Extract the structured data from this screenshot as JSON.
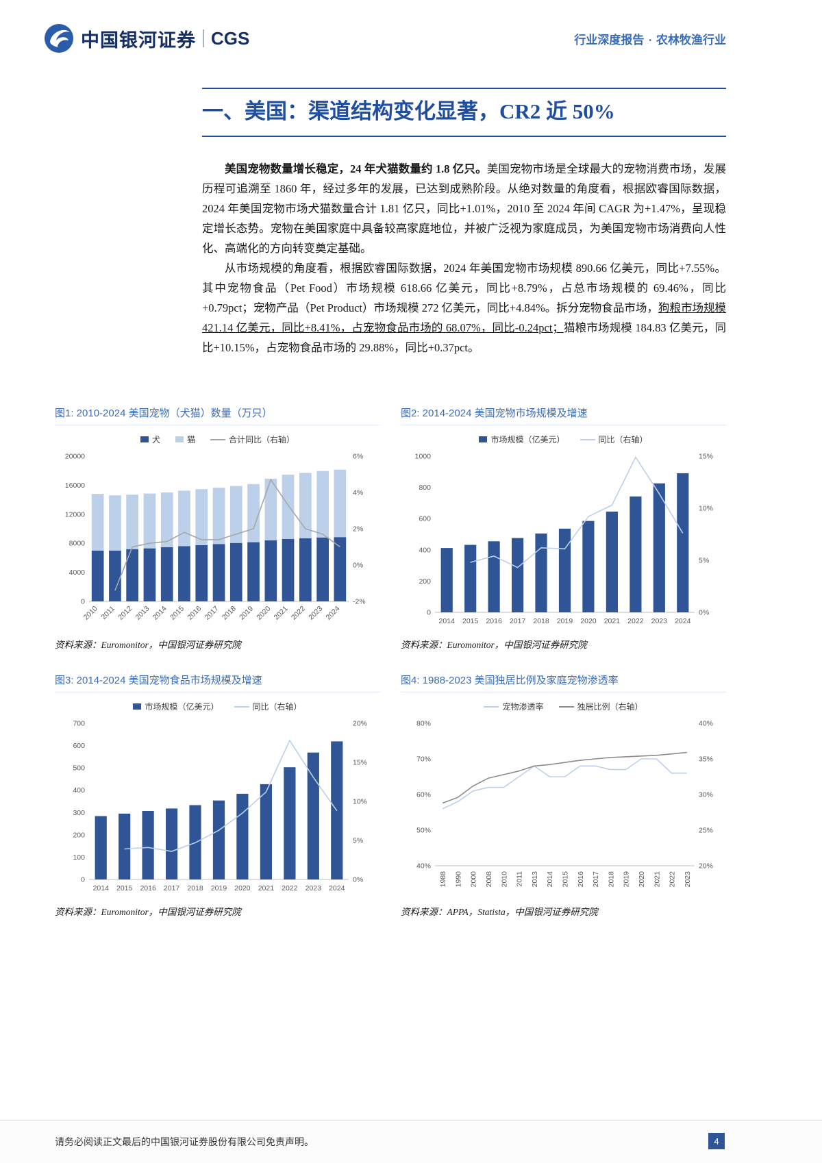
{
  "header": {
    "brand_cn": "中国银河证券",
    "brand_en": "CGS",
    "report_type": "行业深度报告",
    "separator": "·",
    "industry": "农林牧渔行业"
  },
  "title": "一、美国：渠道结构变化显著，CR2 近 50%",
  "body": {
    "p1_bold": "美国宠物数量增长稳定，24 年犬猫数量约 1.8 亿只。",
    "p1_rest": "美国宠物市场是全球最大的宠物消费市场，发展历程可追溯至 1860 年，经过多年的发展，已达到成熟阶段。从绝对数量的角度看，根据欧睿国际数据，2024 年美国宠物市场犬猫数量合计 1.81 亿只，同比+1.01%，2010 至 2024 年间 CAGR 为+1.47%，呈现稳定增长态势。宠物在美国家庭中具备较高家庭地位，并被广泛视为家庭成员，为美国宠物市场消费向人性化、高端化的方向转变奠定基础。",
    "p2_pre": "从市场规模的角度看，根据欧睿国际数据，2024 年美国宠物市场规模 890.66 亿美元，同比+7.55%。其中宠物食品（Pet Food）市场规模 618.66 亿美元，同比+8.79%，占总市场规模的 69.46%，同比+0.79pct；宠物产品（Pet Product）市场规模 272 亿美元，同比+4.84%。拆分宠物食品市场，",
    "p2_underline": "狗粮市场规模 421.14 亿美元，同比+8.41%，占宠物食品市场的 68.07%，同比-0.24pct；",
    "p2_post": "猫粮市场规模 184.83 亿美元，同比+10.15%，占宠物食品市场的 29.88%，同比+0.37pct。"
  },
  "figures": [
    {
      "caption": "图1: 2010-2024 美国宠物（犬猫）数量（万只）",
      "source": "资料来源：Euromonitor，中国银河证券研究院",
      "chart_data": {
        "type": "bar",
        "stacked": true,
        "bar_ratio": 0.7,
        "x_label_rotate": 45,
        "categories": [
          "2010",
          "2011",
          "2012",
          "2013",
          "2014",
          "2015",
          "2016",
          "2017",
          "2018",
          "2019",
          "2020",
          "2021",
          "2022",
          "2023",
          "2024"
        ],
        "left_axis": {
          "min": 0,
          "max": 20000,
          "ticks": [
            0,
            4000,
            8000,
            12000,
            16000,
            20000
          ],
          "suffix": ""
        },
        "right_axis": {
          "min": -2,
          "max": 6,
          "ticks": [
            -2,
            0,
            2,
            4,
            6
          ],
          "suffix": "%"
        },
        "bars": [
          {
            "name": "犬",
            "color": "#2F5597",
            "values": [
              7000,
              7000,
              7200,
              7300,
              7450,
              7600,
              7750,
              7900,
              8050,
              8150,
              8400,
              8600,
              8700,
              8800,
              8850
            ]
          },
          {
            "name": "猫",
            "color": "#BDD0E9",
            "values": [
              7800,
              7600,
              7500,
              7550,
              7550,
              7650,
              7700,
              7750,
              7850,
              8000,
              8500,
              8850,
              9000,
              9150,
              9280
            ]
          }
        ],
        "lines": [
          {
            "name": "合计同比（右轴）",
            "color": "#A6A6A6",
            "axis": "right",
            "values": [
              null,
              -1.4,
              1.0,
              1.2,
              1.3,
              1.8,
              1.4,
              1.4,
              1.7,
              2.0,
              4.7,
              3.3,
              2.0,
              1.7,
              1.0
            ]
          }
        ]
      }
    },
    {
      "caption": "图2: 2014-2024 美国宠物市场规模及增速",
      "source": "资料来源：Euromonitor，中国银河证券研究院",
      "chart_data": {
        "type": "bar",
        "stacked": false,
        "bar_ratio": 0.5,
        "x_label_rotate": 0,
        "categories": [
          "2014",
          "2015",
          "2016",
          "2017",
          "2018",
          "2019",
          "2020",
          "2021",
          "2022",
          "2023",
          "2024"
        ],
        "left_axis": {
          "min": 0,
          "max": 1000,
          "ticks": [
            0,
            200,
            400,
            600,
            800,
            1000
          ],
          "suffix": ""
        },
        "right_axis": {
          "min": 0,
          "max": 15,
          "ticks": [
            0,
            5,
            10,
            15
          ],
          "suffix": "%"
        },
        "bars": [
          {
            "name": "市场规模（亿美元）",
            "color": "#2F5597",
            "values": [
              412,
              432,
              455,
              476,
              505,
              536,
              585,
              645,
              742,
              826,
              891
            ]
          }
        ],
        "lines": [
          {
            "name": "同比（右轴）",
            "color": "#BDD0E9",
            "axis": "right",
            "values": [
              null,
              4.8,
              5.4,
              4.3,
              6.2,
              6.1,
              9.2,
              10.3,
              14.9,
              11.4,
              7.6
            ]
          }
        ]
      }
    },
    {
      "caption": "图3: 2014-2024 美国宠物食品市场规模及增速",
      "source": "资料来源：Euromonitor，中国银河证券研究院",
      "chart_data": {
        "type": "bar",
        "stacked": false,
        "bar_ratio": 0.5,
        "x_label_rotate": 0,
        "categories": [
          "2014",
          "2015",
          "2016",
          "2017",
          "2018",
          "2019",
          "2020",
          "2021",
          "2022",
          "2023",
          "2024"
        ],
        "left_axis": {
          "min": 0,
          "max": 700,
          "ticks": [
            0,
            100,
            200,
            300,
            400,
            500,
            600,
            700
          ],
          "suffix": ""
        },
        "right_axis": {
          "min": 0,
          "max": 20,
          "ticks": [
            0,
            5,
            10,
            15,
            20
          ],
          "suffix": "%"
        },
        "bars": [
          {
            "name": "市场规模（亿美元）",
            "color": "#2F5597",
            "values": [
              284,
              295,
              307,
              318,
              333,
              354,
              384,
              427,
              503,
              569,
              619
            ]
          }
        ],
        "lines": [
          {
            "name": "同比（右轴）",
            "color": "#BDD0E9",
            "axis": "right",
            "values": [
              null,
              3.9,
              4.1,
              3.6,
              4.7,
              6.3,
              8.5,
              11.2,
              17.8,
              13.1,
              8.8
            ]
          }
        ]
      }
    },
    {
      "caption": "图4:  1988-2023 美国独居比例及家庭宠物渗透率",
      "source": "资料来源：APPA，Statista，中国银河证券研究院",
      "chart_data": {
        "type": "line",
        "x_label_rotate": 90,
        "categories": [
          "1988",
          "1990",
          "2000",
          "2008",
          "2010",
          "2011",
          "2013",
          "2014",
          "2015",
          "2016",
          "2017",
          "2018",
          "2019",
          "2020",
          "2021",
          "2022",
          "2023"
        ],
        "left_axis": {
          "min": 40,
          "max": 80,
          "ticks": [
            40,
            50,
            60,
            70,
            80
          ],
          "suffix": "%"
        },
        "right_axis": {
          "min": 20,
          "max": 40,
          "ticks": [
            20,
            25,
            30,
            35,
            40
          ],
          "suffix": "%"
        },
        "lines": [
          {
            "name": "宠物渗透率",
            "color": "#BDD0E9",
            "axis": "left",
            "values": [
              56,
              58,
              61,
              62,
              62,
              65,
              68,
              65,
              65,
              68,
              68,
              67,
              67,
              70,
              70,
              66,
              66
            ]
          },
          {
            "name": "独居比例（右轴）",
            "color": "#8C8C8C",
            "axis": "right",
            "values": [
              28.8,
              29.6,
              31.2,
              32.3,
              32.8,
              33.3,
              34.0,
              34.2,
              34.5,
              34.8,
              35.0,
              35.2,
              35.3,
              35.4,
              35.5,
              35.7,
              35.9
            ]
          }
        ]
      }
    }
  ],
  "footer": {
    "disclaimer": "请务必阅读正文最后的中国银河证券股份有限公司免责声明。",
    "page_number": "4"
  },
  "colors": {
    "accent_blue": "#1F4E9E",
    "caption_blue": "#3C6CB5",
    "bar_dark": "#2F5597",
    "bar_light": "#BDD0E9",
    "line_gray": "#A6A6A6",
    "badge_blue": "#2F5597"
  }
}
